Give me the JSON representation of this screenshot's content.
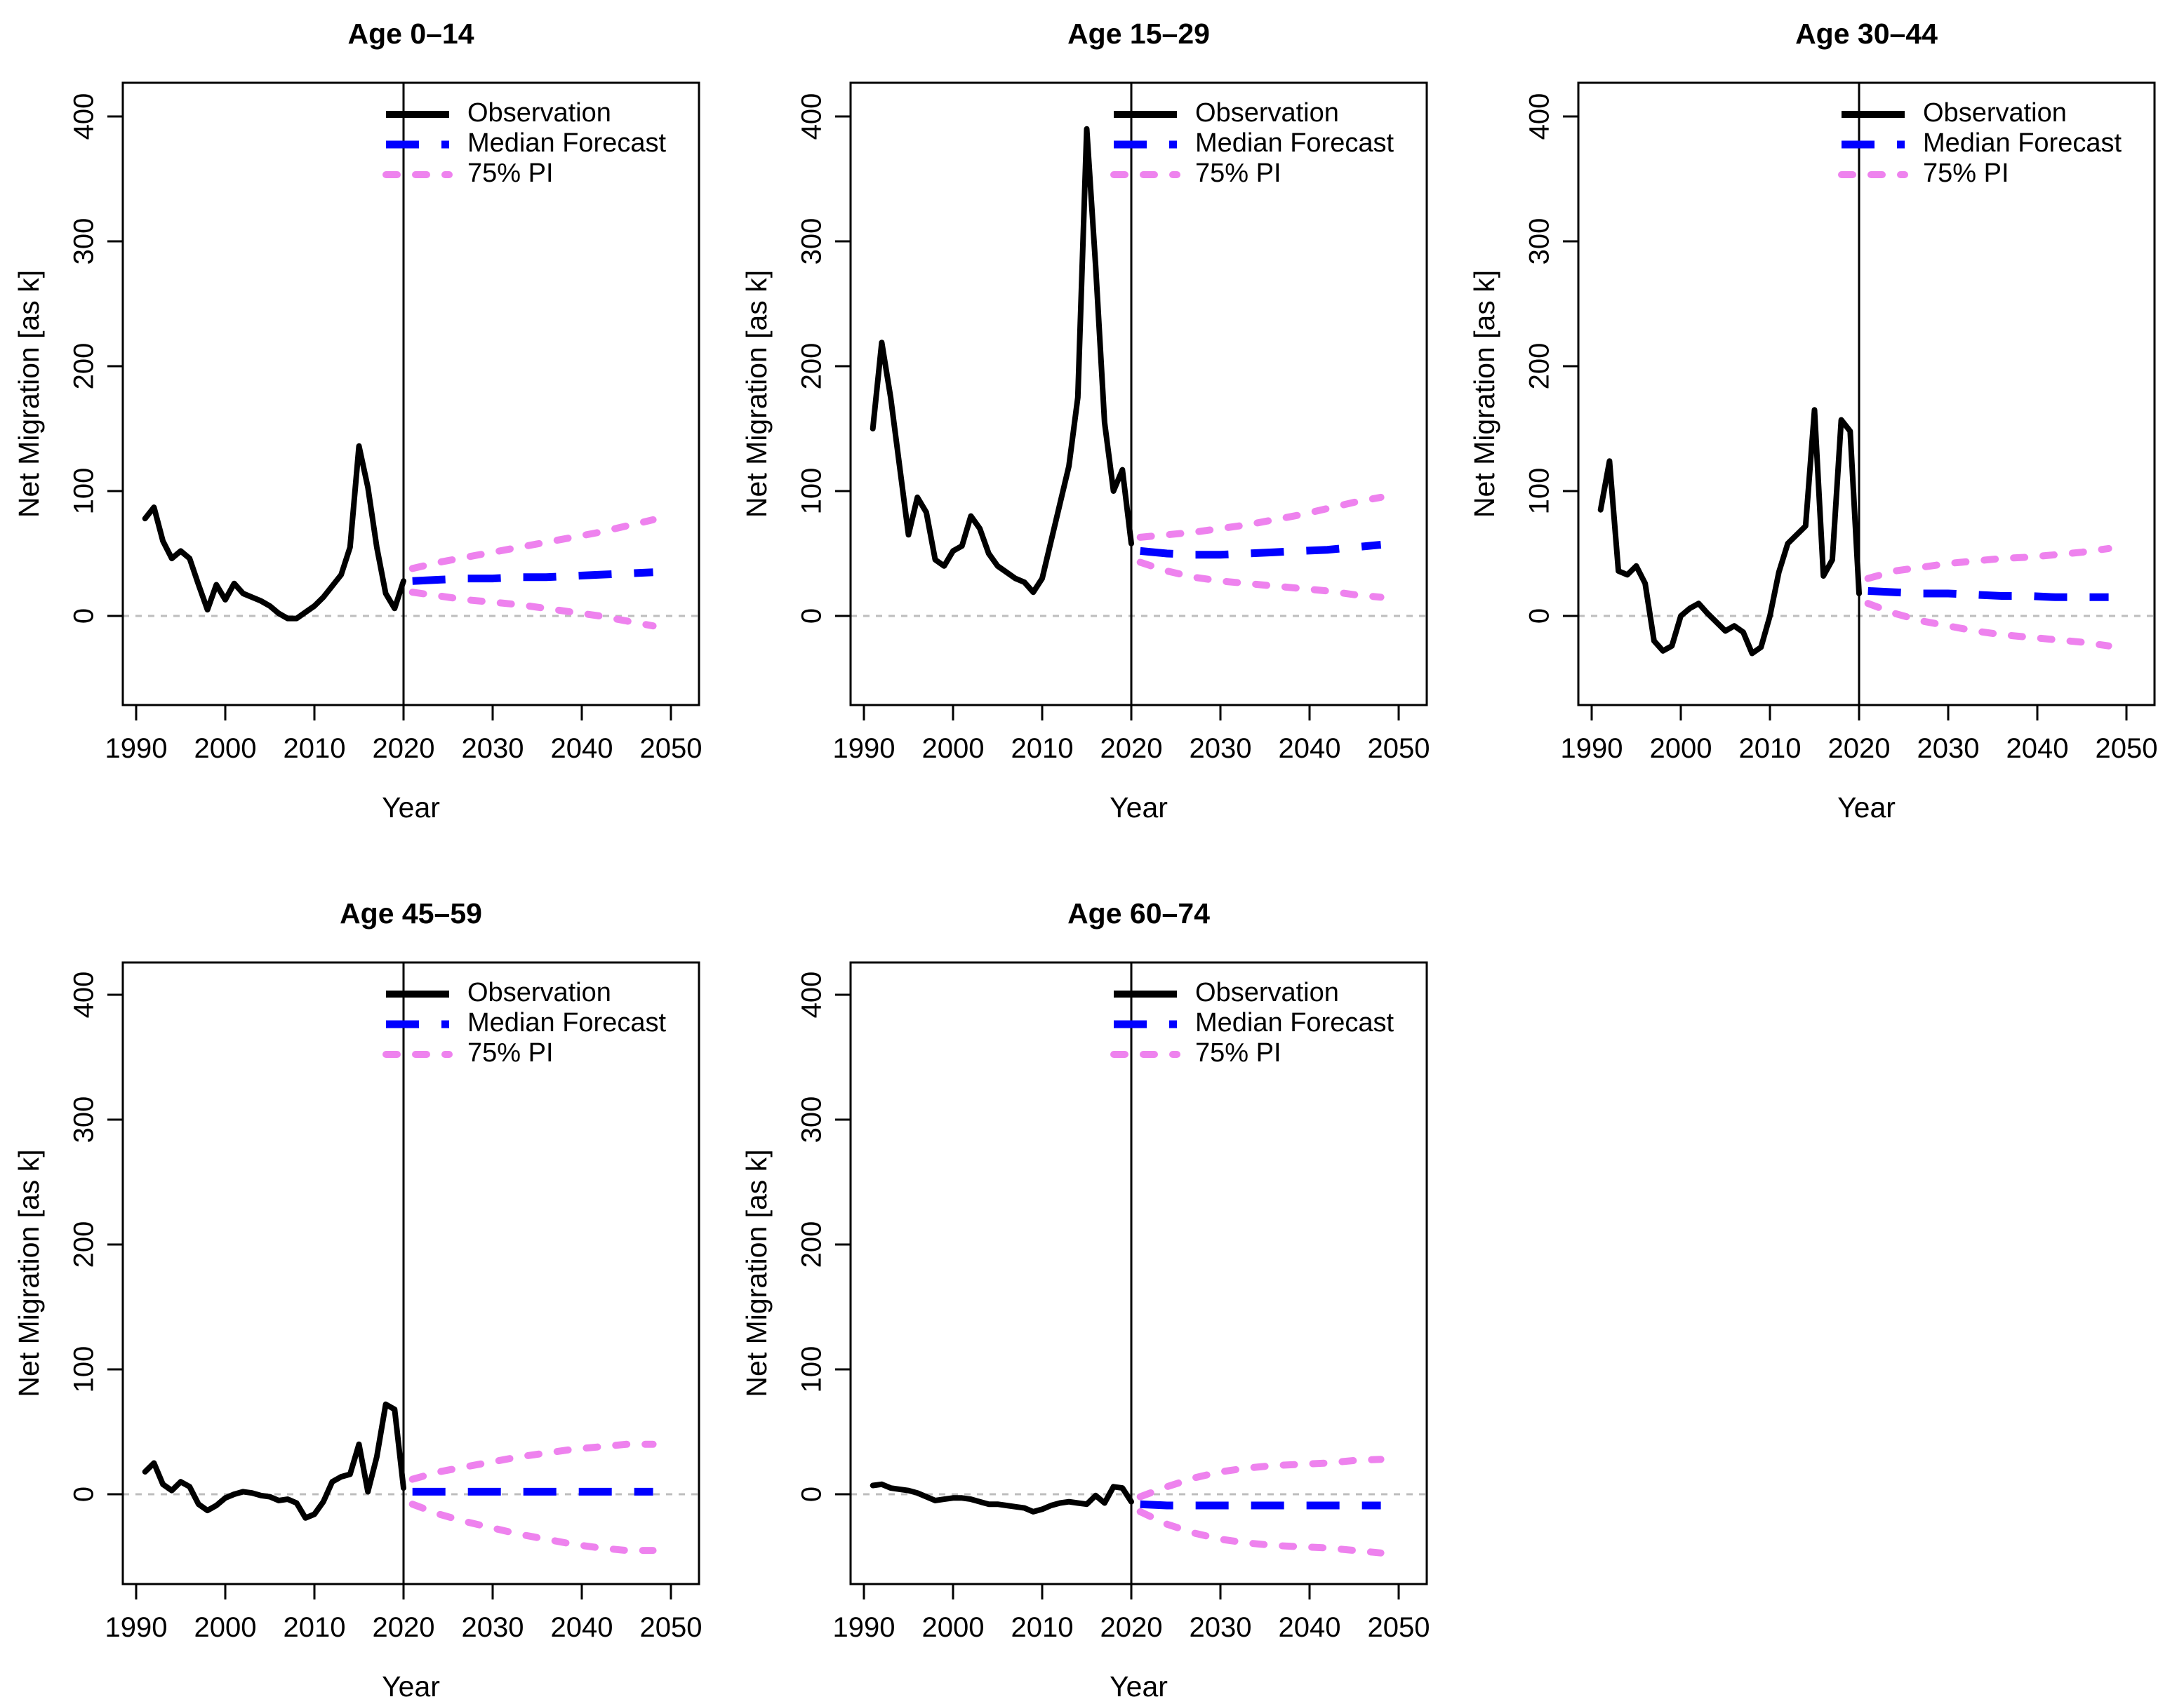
{
  "figure": {
    "x_axis_label": "Year",
    "y_axis_label": "Net Migration [as k]",
    "x_ticks": [
      1990,
      2000,
      2010,
      2020,
      2030,
      2040,
      2050
    ],
    "y_ticks": [
      0,
      100,
      200,
      300,
      400
    ],
    "forecast_divider_year": 2020,
    "zero_reference_line": 0,
    "legend": [
      {
        "label": "Observation",
        "color": "#000000",
        "style": "solid"
      },
      {
        "label": "Median Forecast",
        "color": "#0000FF",
        "style": "long-dash"
      },
      {
        "label": "75% PI",
        "color": "#EE82EE",
        "style": "short-dash"
      }
    ],
    "colors": {
      "observation": "#000000",
      "median_forecast": "#0000FF",
      "pi_75": "#EE82EE",
      "zero_line": "#BDBDBD",
      "frame": "#000000",
      "divider": "#000000",
      "text": "#000000"
    }
  },
  "chart_data": [
    {
      "type": "line",
      "title": "Age 0–14",
      "xlabel": "Year",
      "ylabel": "Net Migration [as k]",
      "xlim": [
        1988,
        2053
      ],
      "ylim": [
        -71,
        426
      ],
      "x_ticks": [
        1990,
        2000,
        2010,
        2020,
        2030,
        2040,
        2050
      ],
      "y_ticks": [
        0,
        100,
        200,
        300,
        400
      ],
      "vline_x": 2020,
      "hline_y": 0,
      "legend_position": "top-right-inside",
      "obs_years": [
        1991,
        1992,
        1993,
        1994,
        1995,
        1996,
        1997,
        1998,
        1999,
        2000,
        2001,
        2002,
        2003,
        2004,
        2005,
        2006,
        2007,
        2008,
        2009,
        2010,
        2011,
        2012,
        2013,
        2014,
        2015,
        2016,
        2017,
        2018,
        2019,
        2020
      ],
      "observation": [
        78,
        87,
        60,
        46,
        52,
        46,
        25,
        5,
        25,
        13,
        26,
        18,
        15,
        12,
        8,
        2,
        -2,
        -2,
        3,
        8,
        15,
        24,
        33,
        55,
        136,
        103,
        55,
        18,
        6,
        28
      ],
      "forecast_years": [
        2021,
        2024,
        2027,
        2030,
        2033,
        2036,
        2039,
        2042,
        2045,
        2048
      ],
      "median_forecast": [
        28,
        29,
        30,
        30,
        31,
        31,
        32,
        33,
        34,
        35
      ],
      "pi75_upper": [
        38,
        43,
        47,
        51,
        55,
        59,
        63,
        67,
        72,
        77
      ],
      "pi75_lower": [
        19,
        16,
        13,
        11,
        9,
        6,
        3,
        0,
        -4,
        -8
      ]
    },
    {
      "type": "line",
      "title": "Age 15–29",
      "xlabel": "Year",
      "ylabel": "Net Migration [as k]",
      "xlim": [
        1988,
        2053
      ],
      "ylim": [
        -71,
        426
      ],
      "x_ticks": [
        1990,
        2000,
        2010,
        2020,
        2030,
        2040,
        2050
      ],
      "y_ticks": [
        0,
        100,
        200,
        300,
        400
      ],
      "vline_x": 2020,
      "hline_y": 0,
      "legend_position": "top-right-inside",
      "obs_years": [
        1991,
        1992,
        1993,
        1994,
        1995,
        1996,
        1997,
        1998,
        1999,
        2000,
        2001,
        2002,
        2003,
        2004,
        2005,
        2006,
        2007,
        2008,
        2009,
        2010,
        2011,
        2012,
        2013,
        2014,
        2015,
        2016,
        2017,
        2018,
        2019,
        2020
      ],
      "observation": [
        150,
        219,
        175,
        120,
        65,
        95,
        83,
        45,
        40,
        52,
        56,
        80,
        70,
        50,
        40,
        35,
        30,
        27,
        19,
        30,
        60,
        90,
        120,
        175,
        390,
        280,
        155,
        100,
        117,
        58
      ],
      "forecast_years": [
        2021,
        2024,
        2027,
        2030,
        2033,
        2036,
        2039,
        2042,
        2045,
        2048
      ],
      "median_forecast": [
        52,
        50,
        49,
        49,
        50,
        51,
        52,
        53,
        55,
        57
      ],
      "pi75_upper": [
        63,
        65,
        67,
        70,
        73,
        77,
        81,
        86,
        91,
        95
      ],
      "pi75_lower": [
        43,
        36,
        31,
        28,
        26,
        24,
        22,
        20,
        17,
        15
      ]
    },
    {
      "type": "line",
      "title": "Age 30–44",
      "xlabel": "Year",
      "ylabel": "Net Migration [as k]",
      "xlim": [
        1988,
        2053
      ],
      "ylim": [
        -71,
        426
      ],
      "x_ticks": [
        1990,
        2000,
        2010,
        2020,
        2030,
        2040,
        2050
      ],
      "y_ticks": [
        0,
        100,
        200,
        300,
        400
      ],
      "vline_x": 2020,
      "hline_y": 0,
      "legend_position": "top-right-inside",
      "obs_years": [
        1991,
        1992,
        1993,
        1994,
        1995,
        1996,
        1997,
        1998,
        1999,
        2000,
        2001,
        2002,
        2003,
        2004,
        2005,
        2006,
        2007,
        2008,
        2009,
        2010,
        2011,
        2012,
        2013,
        2014,
        2015,
        2016,
        2017,
        2018,
        2019,
        2020
      ],
      "observation": [
        85,
        124,
        36,
        33,
        40,
        26,
        -20,
        -28,
        -24,
        0,
        6,
        10,
        2,
        -5,
        -12,
        -8,
        -13,
        -30,
        -25,
        0,
        35,
        58,
        65,
        72,
        165,
        32,
        45,
        157,
        148,
        18
      ],
      "forecast_years": [
        2021,
        2024,
        2027,
        2030,
        2033,
        2036,
        2039,
        2042,
        2045,
        2048
      ],
      "median_forecast": [
        20,
        19,
        18,
        18,
        17,
        16,
        16,
        15,
        15,
        15
      ],
      "pi75_upper": [
        30,
        36,
        39,
        42,
        44,
        46,
        47,
        49,
        51,
        54
      ],
      "pi75_lower": [
        10,
        2,
        -4,
        -8,
        -12,
        -15,
        -17,
        -19,
        -21,
        -24
      ]
    },
    {
      "type": "line",
      "title": "Age 45–59",
      "xlabel": "Year",
      "ylabel": "Net Migration [as k]",
      "xlim": [
        1988,
        2053
      ],
      "ylim": [
        -71,
        426
      ],
      "x_ticks": [
        1990,
        2000,
        2010,
        2020,
        2030,
        2040,
        2050
      ],
      "y_ticks": [
        0,
        100,
        200,
        300,
        400
      ],
      "vline_x": 2020,
      "hline_y": 0,
      "legend_position": "top-right-inside",
      "obs_years": [
        1991,
        1992,
        1993,
        1994,
        1995,
        1996,
        1997,
        1998,
        1999,
        2000,
        2001,
        2002,
        2003,
        2004,
        2005,
        2006,
        2007,
        2008,
        2009,
        2010,
        2011,
        2012,
        2013,
        2014,
        2015,
        2016,
        2017,
        2018,
        2019,
        2020
      ],
      "observation": [
        18,
        25,
        8,
        3,
        10,
        6,
        -8,
        -13,
        -9,
        -3,
        0,
        2,
        1,
        -1,
        -2,
        -5,
        -4,
        -7,
        -19,
        -16,
        -6,
        10,
        14,
        16,
        40,
        2,
        30,
        72,
        68,
        5
      ],
      "forecast_years": [
        2021,
        2024,
        2027,
        2030,
        2033,
        2036,
        2039,
        2042,
        2045,
        2048
      ],
      "median_forecast": [
        2,
        2,
        2,
        2,
        2,
        2,
        2,
        2,
        2,
        2
      ],
      "pi75_upper": [
        12,
        18,
        22,
        26,
        30,
        33,
        36,
        38,
        40,
        40
      ],
      "pi75_lower": [
        -8,
        -16,
        -22,
        -27,
        -32,
        -36,
        -40,
        -43,
        -45,
        -45
      ]
    },
    {
      "type": "line",
      "title": "Age 60–74",
      "xlabel": "Year",
      "ylabel": "Net Migration [as k]",
      "xlim": [
        1988,
        2053
      ],
      "ylim": [
        -71,
        426
      ],
      "x_ticks": [
        1990,
        2000,
        2010,
        2020,
        2030,
        2040,
        2050
      ],
      "y_ticks": [
        0,
        100,
        200,
        300,
        400
      ],
      "vline_x": 2020,
      "hline_y": 0,
      "legend_position": "top-right-inside",
      "obs_years": [
        1991,
        1992,
        1993,
        1994,
        1995,
        1996,
        1997,
        1998,
        1999,
        2000,
        2001,
        2002,
        2003,
        2004,
        2005,
        2006,
        2007,
        2008,
        2009,
        2010,
        2011,
        2012,
        2013,
        2014,
        2015,
        2016,
        2017,
        2018,
        2019,
        2020
      ],
      "observation": [
        7,
        8,
        5,
        4,
        3,
        1,
        -2,
        -5,
        -4,
        -3,
        -3,
        -4,
        -6,
        -8,
        -8,
        -9,
        -10,
        -11,
        -14,
        -12,
        -9,
        -7,
        -6,
        -7,
        -8,
        -1,
        -7,
        6,
        5,
        -6
      ],
      "forecast_years": [
        2021,
        2024,
        2027,
        2030,
        2033,
        2036,
        2039,
        2042,
        2045,
        2048
      ],
      "median_forecast": [
        -8,
        -9,
        -9,
        -9,
        -9,
        -9,
        -9,
        -9,
        -9,
        -9
      ],
      "pi75_upper": [
        -2,
        6,
        13,
        18,
        21,
        23,
        24,
        25,
        27,
        28
      ],
      "pi75_lower": [
        -14,
        -24,
        -31,
        -36,
        -39,
        -41,
        -42,
        -43,
        -45,
        -47
      ]
    }
  ]
}
